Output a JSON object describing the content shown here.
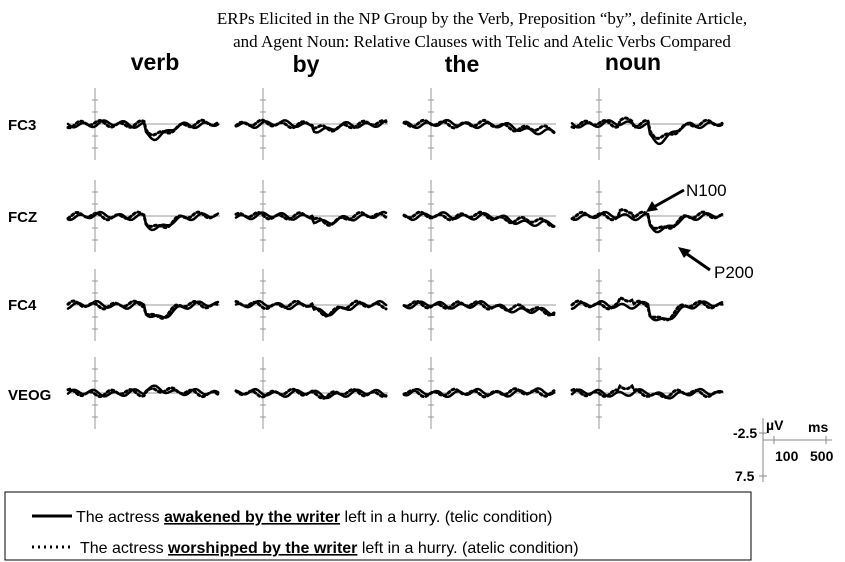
{
  "title": [
    "ERPs Elicited in the NP Group by the Verb, Preposition “by”, definite Article,",
    "and Agent Noun: Relative Clauses with Telic and Atelic Verbs Compared"
  ],
  "columns": [
    "verb",
    "by",
    "the",
    "noun"
  ],
  "rows": [
    "FC3",
    "FCZ",
    "FC4",
    "VEOG"
  ],
  "annotations": [
    "N100",
    "P200"
  ],
  "scale": {
    "voltage_unit": "µV",
    "time_unit": "ms",
    "voltage_ticks": [
      "-2.5",
      "7.5"
    ],
    "time_ticks": [
      "100",
      "500"
    ]
  },
  "legend": [
    {
      "before": "The actress ",
      "emphasis": "awakened by the writer",
      "after": " left in a hurry. (telic condition)"
    },
    {
      "before": "The actress ",
      "emphasis": "worshipped by the writer",
      "after": " left in a hurry. (atelic condition)"
    }
  ]
}
